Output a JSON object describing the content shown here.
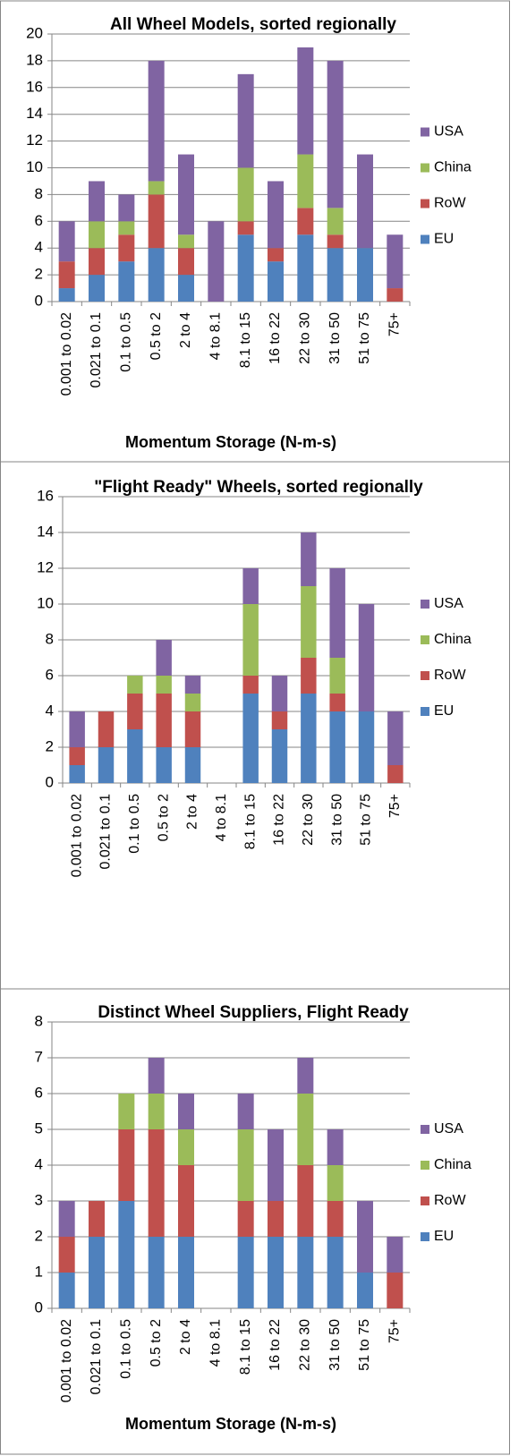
{
  "chart_data": [
    {
      "type": "bar",
      "stacked": true,
      "title": "All Wheel Models, sorted regionally",
      "x_label": "Momentum Storage (N-m-s)",
      "categories": [
        "0.001 to 0.02",
        "0.021 to 0.1",
        "0.1 to 0.5",
        "0.5 to 2",
        "2 to 4",
        "4 to 8.1",
        "8.1 to 15",
        "16 to 22",
        "22 to 30",
        "31 to 50",
        "51 to 75",
        "75+"
      ],
      "series": [
        {
          "name": "EU",
          "color": "#4f81bd",
          "values": [
            1,
            2,
            3,
            4,
            2,
            0,
            5,
            3,
            5,
            4,
            4,
            0
          ]
        },
        {
          "name": "RoW",
          "color": "#c0504d",
          "values": [
            2,
            2,
            2,
            4,
            2,
            0,
            1,
            1,
            2,
            1,
            0,
            1
          ]
        },
        {
          "name": "China",
          "color": "#9bbb59",
          "values": [
            0,
            2,
            1,
            1,
            1,
            0,
            4,
            0,
            4,
            2,
            0,
            0
          ]
        },
        {
          "name": "USA",
          "color": "#8064a2",
          "values": [
            3,
            3,
            2,
            9,
            6,
            6,
            7,
            5,
            8,
            11,
            7,
            4
          ]
        }
      ],
      "ylim": [
        0,
        20
      ],
      "yticks": [
        0,
        2,
        4,
        6,
        8,
        10,
        12,
        14,
        16,
        18,
        20
      ],
      "grid": true,
      "legend": "right"
    },
    {
      "type": "bar",
      "stacked": true,
      "title": "\"Flight Ready\" Wheels, sorted regionally",
      "categories": [
        "0.001 to 0.02",
        "0.021 to 0.1",
        "0.1 to 0.5",
        "0.5 to 2",
        "2 to 4",
        "4 to 8.1",
        "8.1 to 15",
        "16 to 22",
        "22 to 30",
        "31 to 50",
        "51 to 75",
        "75+"
      ],
      "series": [
        {
          "name": "EU",
          "color": "#4f81bd",
          "values": [
            1,
            2,
            3,
            2,
            2,
            0,
            5,
            3,
            5,
            4,
            4,
            0
          ]
        },
        {
          "name": "RoW",
          "color": "#c0504d",
          "values": [
            1,
            2,
            2,
            3,
            2,
            0,
            1,
            1,
            2,
            1,
            0,
            1
          ]
        },
        {
          "name": "China",
          "color": "#9bbb59",
          "values": [
            0,
            0,
            1,
            1,
            1,
            0,
            4,
            0,
            4,
            2,
            0,
            0
          ]
        },
        {
          "name": "USA",
          "color": "#8064a2",
          "values": [
            2,
            0,
            0,
            2,
            1,
            0,
            2,
            2,
            3,
            5,
            6,
            3
          ]
        }
      ],
      "ylim": [
        0,
        16
      ],
      "yticks": [
        0,
        2,
        4,
        6,
        8,
        10,
        12,
        14,
        16
      ],
      "grid": true,
      "legend": "right"
    },
    {
      "type": "bar",
      "stacked": true,
      "title": "Distinct Wheel Suppliers, Flight Ready",
      "x_label": "Momentum Storage (N-m-s)",
      "categories": [
        "0.001 to 0.02",
        "0.021 to 0.1",
        "0.1 to 0.5",
        "0.5 to 2",
        "2 to 4",
        "4 to 8.1",
        "8.1 to 15",
        "16 to 22",
        "22 to 30",
        "31 to 50",
        "51 to 75",
        "75+"
      ],
      "series": [
        {
          "name": "EU",
          "color": "#4f81bd",
          "values": [
            1,
            2,
            3,
            2,
            2,
            0,
            2,
            2,
            2,
            2,
            1,
            0
          ]
        },
        {
          "name": "RoW",
          "color": "#c0504d",
          "values": [
            1,
            1,
            2,
            3,
            2,
            0,
            1,
            1,
            2,
            1,
            0,
            1
          ]
        },
        {
          "name": "China",
          "color": "#9bbb59",
          "values": [
            0,
            0,
            1,
            1,
            1,
            0,
            2,
            0,
            2,
            1,
            0,
            0
          ]
        },
        {
          "name": "USA",
          "color": "#8064a2",
          "values": [
            1,
            0,
            0,
            1,
            1,
            0,
            1,
            2,
            1,
            1,
            2,
            1
          ]
        }
      ],
      "ylim": [
        0,
        8
      ],
      "yticks": [
        0,
        1,
        2,
        3,
        4,
        5,
        6,
        7,
        8
      ],
      "grid": true,
      "legend": "right"
    }
  ]
}
